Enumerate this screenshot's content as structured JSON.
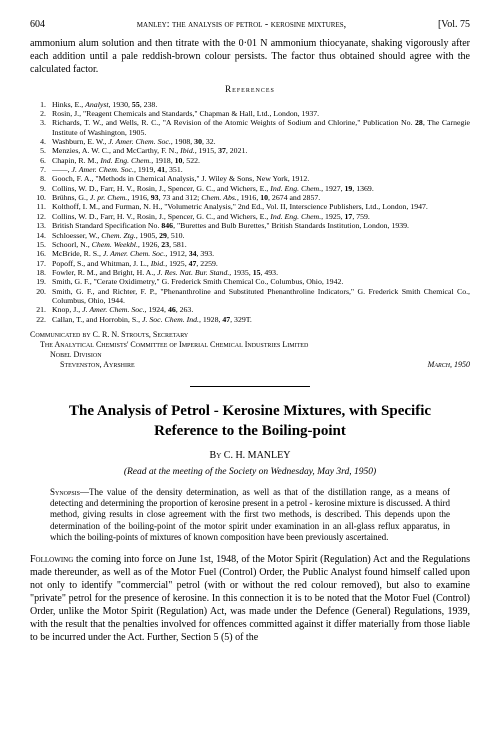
{
  "header": {
    "page_number": "604",
    "running_head": "manley: the analysis of petrol - kerosine mixtures,",
    "volume": "[Vol. 75"
  },
  "top_paragraph": "ammonium alum solution and then titrate with the 0·01 N ammonium thiocyanate, shaking vigorously after each addition until a pale reddish-brown colour persists.  The factor thus obtained should agree with the calculated factor.",
  "references_heading": "References",
  "references": [
    {
      "n": "1.",
      "t": "Hinks, E., Analyst, 1930, 55, 238."
    },
    {
      "n": "2.",
      "t": "Rosin, J., \"Reagent Chemicals and Standards,\" Chapman & Hall, Ltd., London, 1937."
    },
    {
      "n": "3.",
      "t": "Richards, T. W., and Wells, R. C., \"A Revision of the Atomic Weights of Sodium and Chlorine,\" Publication No. 28, The Carnegie Institute of Washington, 1905."
    },
    {
      "n": "4.",
      "t": "Washburn, E. W., J. Amer. Chem. Soc., 1908, 30, 32."
    },
    {
      "n": "5.",
      "t": "Menzies, A. W. C., and McCarthy, F. N., Ibid., 1915, 37, 2021."
    },
    {
      "n": "6.",
      "t": "Chapin, R. M., Ind. Eng. Chem., 1918, 10, 522."
    },
    {
      "n": "7.",
      "t": "——, J. Amer. Chem. Soc., 1919, 41, 351."
    },
    {
      "n": "8.",
      "t": "Gooch, F. A., \"Methods in Chemical Analysis,\" J. Wiley & Sons, New York, 1912."
    },
    {
      "n": "9.",
      "t": "Collins, W. D., Farr, H. V., Rosin, J., Spencer, G. C., and Wichers, E., Ind. Eng. Chem., 1927, 19, 1369."
    },
    {
      "n": "10.",
      "t": "Brühns, G., J. pr. Chem., 1916, 93, 73 and 312; Chem. Abs., 1916, 10, 2674 and 2857."
    },
    {
      "n": "11.",
      "t": "Kolthoff, I. M., and Furman, N. H., \"Volumetric Analysis,\" 2nd Ed., Vol. II, Interscience Publishers, Ltd., London, 1947."
    },
    {
      "n": "12.",
      "t": "Collins, W. D., Farr, H. V., Rosin, J., Spencer, G. C., and Wichers, E., Ind. Eng. Chem., 1925, 17, 759."
    },
    {
      "n": "13.",
      "t": "British Standard Specification No. 846, \"Burettes and Bulb Burettes,\" British Standards Institution, London, 1939."
    },
    {
      "n": "14.",
      "t": "Schloesser, W., Chem. Ztg., 1905, 29, 510."
    },
    {
      "n": "15.",
      "t": "Schoorl, N., Chem. Weekbl., 1926, 23, 581."
    },
    {
      "n": "16.",
      "t": "McBride, R. S., J. Amer. Chem. Soc., 1912, 34, 393."
    },
    {
      "n": "17.",
      "t": "Popoff, S., and Whitman, J. L., Ibid., 1925, 47, 2259."
    },
    {
      "n": "18.",
      "t": "Fowler, R. M., and Bright, H. A., J. Res. Nat. Bur. Stand., 1935, 15, 493."
    },
    {
      "n": "19.",
      "t": "Smith, G. F., \"Cerate Oxidimetry,\" G. Frederick Smith Chemical Co., Columbus, Ohio, 1942."
    },
    {
      "n": "20.",
      "t": "Smith, G. F., and Richter, F. P., \"Phenanthroline and Substituted Phenanthroline Indicators,\" G. Frederick Smith Chemical Co., Columbus, Ohio, 1944."
    },
    {
      "n": "21.",
      "t": "Knop, J., J. Amer. Chem. Soc., 1924, 46, 263."
    },
    {
      "n": "22.",
      "t": "Callan, T., and Horrobin, S., J. Soc. Chem. Ind., 1928, 47, 329T."
    }
  ],
  "communicated": {
    "line1": "Communicated by C. R. N. Strouts, Secretary",
    "line2": "The Analytical Chemists' Committee of Imperial Chemical Industries Limited",
    "line3": "Nobel Division",
    "line4_left": "Stevenston, Ayrshire",
    "line4_right": "March, 1950"
  },
  "article": {
    "title": "The Analysis of Petrol - Kerosine Mixtures, with Specific Reference to the Boiling-point",
    "by_label": "By",
    "author": "C. H. MANLEY",
    "read_at": "(Read at the meeting of the Society on Wednesday, May 3rd, 1950)",
    "synopsis_label": "Synopsis",
    "synopsis_body": "—The value of the density determination, as well as that of the distillation range, as a means of detecting and determining the proportion of kerosine present in a petrol - kerosine mixture is discussed.  A third method, giving results in close agreement with the first two methods, is described.  This depends upon the determination of the boiling-point of the motor spirit under examination in an all-glass reflux apparatus, in which the boiling-points of mixtures of known composition have been previously ascertained.",
    "main_lead": "Following",
    "main_body": " the coming into force on June 1st, 1948, of the Motor Spirit (Regulation) Act and the Regulations made thereunder, as well as of the Motor Fuel (Control) Order, the Public Analyst found himself called upon not only to identify \"commercial\" petrol (with or without the red colour removed), but also to examine \"private\" petrol for the presence of kerosine.  In this connection it is to be noted that the Motor Fuel (Control) Order, unlike the Motor Spirit (Regulation) Act, was made under the Defence (General) Regulations, 1939, with the result that the penalties involved for offences committed against it differ materially from those liable to be incurred under the Act.  Further, Section 5 (5) of the"
  }
}
